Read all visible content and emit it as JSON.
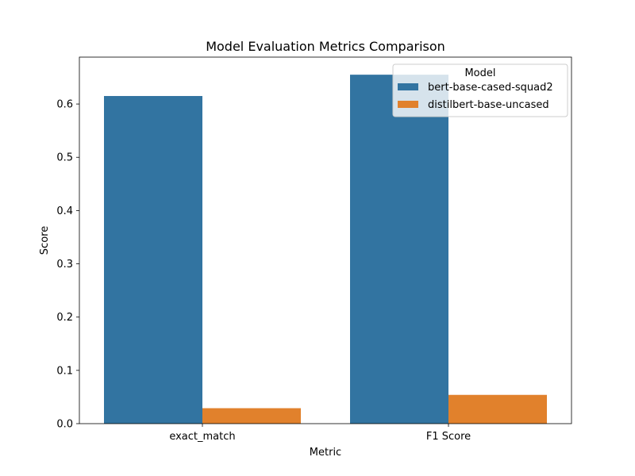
{
  "chart_data": {
    "type": "bar",
    "title": "Model Evaluation Metrics Comparison",
    "xlabel": "Metric",
    "ylabel": "Score",
    "categories": [
      "exact_match",
      "F1 Score"
    ],
    "series": [
      {
        "name": "bert-base-cased-squad2",
        "values": [
          0.615,
          0.655
        ],
        "color": "#3274a1"
      },
      {
        "name": "distilbert-base-uncased",
        "values": [
          0.029,
          0.054
        ],
        "color": "#e1812c"
      }
    ],
    "ylim": [
      0,
      0.688
    ],
    "yticks": [
      0.0,
      0.1,
      0.2,
      0.3,
      0.4,
      0.5,
      0.6
    ],
    "ytick_labels": [
      "0.0",
      "0.1",
      "0.2",
      "0.3",
      "0.4",
      "0.5",
      "0.6"
    ],
    "legend": {
      "title": "Model",
      "position": "top-right"
    },
    "grid": false
  }
}
